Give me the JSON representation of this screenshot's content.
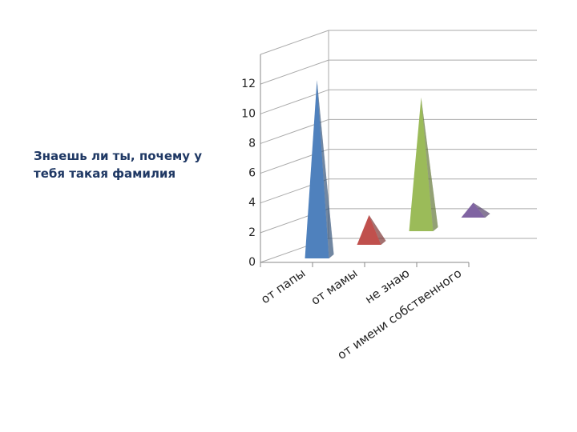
{
  "chart_data": {
    "type": "pyramid3d",
    "title": "Знаешь ли ты, почему у тебя такая фамилия",
    "categories": [
      "от папы",
      "от мамы",
      "не знаю",
      "от имени собственного"
    ],
    "values": [
      12,
      2,
      9,
      1
    ],
    "colors": [
      "#4f81bd",
      "#c0504d",
      "#9bbb59",
      "#8064a2"
    ],
    "ylim": [
      0,
      14
    ],
    "yticks": [
      0,
      2,
      4,
      6,
      8,
      10,
      12
    ],
    "grid": true
  }
}
